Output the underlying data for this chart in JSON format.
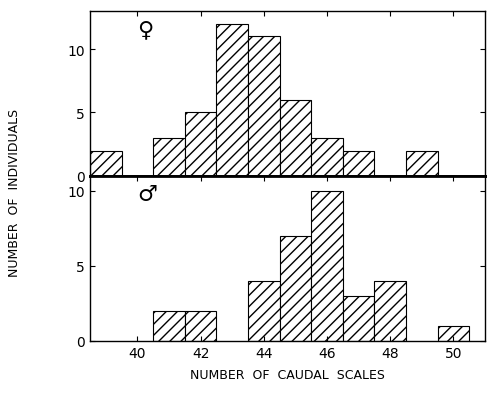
{
  "female_data": {
    "39": 2,
    "40": 0,
    "41": 3,
    "42": 5,
    "43": 12,
    "44": 11,
    "45": 6,
    "46": 3,
    "47": 2,
    "48": 0,
    "49": 2,
    "50": 0
  },
  "male_data": {
    "39": 0,
    "40": 0,
    "41": 2,
    "42": 2,
    "43": 0,
    "44": 4,
    "45": 7,
    "46": 10,
    "47": 3,
    "48": 4,
    "49": 0,
    "50": 1
  },
  "x_min": 38.5,
  "x_max": 51,
  "y_max_female": 13,
  "y_max_male": 11,
  "y_ticks": [
    0,
    5,
    10
  ],
  "x_ticks": [
    40,
    42,
    44,
    46,
    48,
    50
  ],
  "xlabel": "NUMBER  OF  CAUDAL  SCALES",
  "ylabel": "NUMBER  OF  INDIVIDUALS",
  "hatch": "///",
  "bar_color": "white",
  "edge_color": "black",
  "female_symbol": "♀",
  "male_symbol": "♂",
  "background_color": "white"
}
